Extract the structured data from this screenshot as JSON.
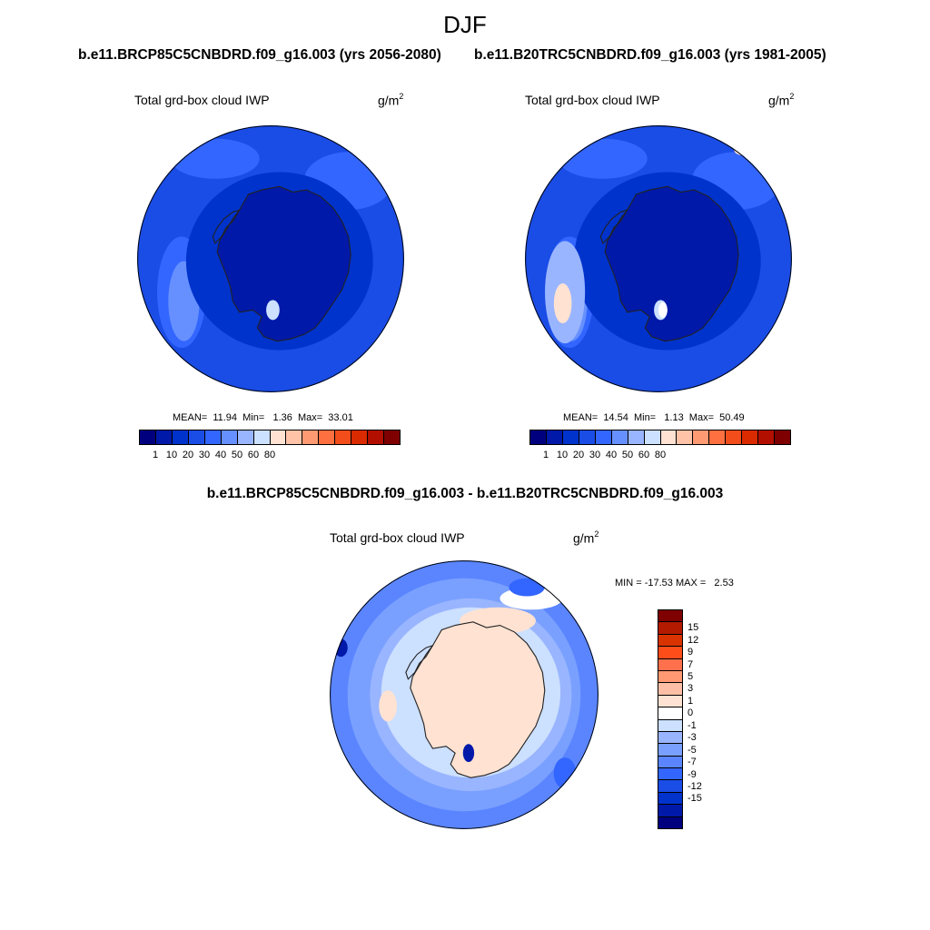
{
  "title": "DJF",
  "colors": {
    "iwp_scale": [
      "#00007f",
      "#0019a9",
      "#0033cc",
      "#1a4ce6",
      "#3366ff",
      "#6690ff",
      "#99b5ff",
      "#cce0ff",
      "#ffe2d2",
      "#ffc3a8",
      "#ff9a73",
      "#ff7040",
      "#f24d1a",
      "#d92a00",
      "#b30f00",
      "#7f0000"
    ],
    "diff_scale": [
      "#7f0000",
      "#b31a00",
      "#d93300",
      "#ff4d1a",
      "#ff704d",
      "#ff9973",
      "#ffbfa6",
      "#ffe2d2",
      "#ffffff",
      "#cce0ff",
      "#99b5ff",
      "#7aa0ff",
      "#5a85ff",
      "#3366ff",
      "#1a4ce6",
      "#0033cc",
      "#0019a9",
      "#00007f"
    ],
    "coastline": "#222222"
  },
  "panels": [
    {
      "case": "b.e11.BRCP85C5CNBDRD.f09_g16.003 (yrs 2056-2080)",
      "label": "Total grd-box cloud IWP",
      "units": "g/m",
      "units_exp": "2",
      "stats": "MEAN=  11.94  Min=   1.36  Max=  33.01",
      "colorbar_labels": [
        "1",
        "10",
        "20",
        "30",
        "40",
        "50",
        "60",
        "80"
      ]
    },
    {
      "case": "b.e11.B20TRC5CNBDRD.f09_g16.003 (yrs 1981-2005)",
      "label": "Total grd-box cloud IWP",
      "units": "g/m",
      "units_exp": "2",
      "stats": "MEAN=  14.54  Min=   1.13  Max=  50.49",
      "colorbar_labels": [
        "1",
        "10",
        "20",
        "30",
        "40",
        "50",
        "60",
        "80"
      ]
    }
  ],
  "diff_panel": {
    "case": "b.e11.BRCP85C5CNBDRD.f09_g16.003 - b.e11.B20TRC5CNBDRD.f09_g16.003",
    "label": "Total grd-box cloud IWP",
    "units": "g/m",
    "units_exp": "2",
    "stats": "MIN = -17.53 MAX =   2.53",
    "colorbar_labels": [
      "15",
      "12",
      "9",
      "7",
      "5",
      "3",
      "1",
      "0",
      "-1",
      "-3",
      "-5",
      "-7",
      "-9",
      "-12",
      "-15"
    ]
  }
}
